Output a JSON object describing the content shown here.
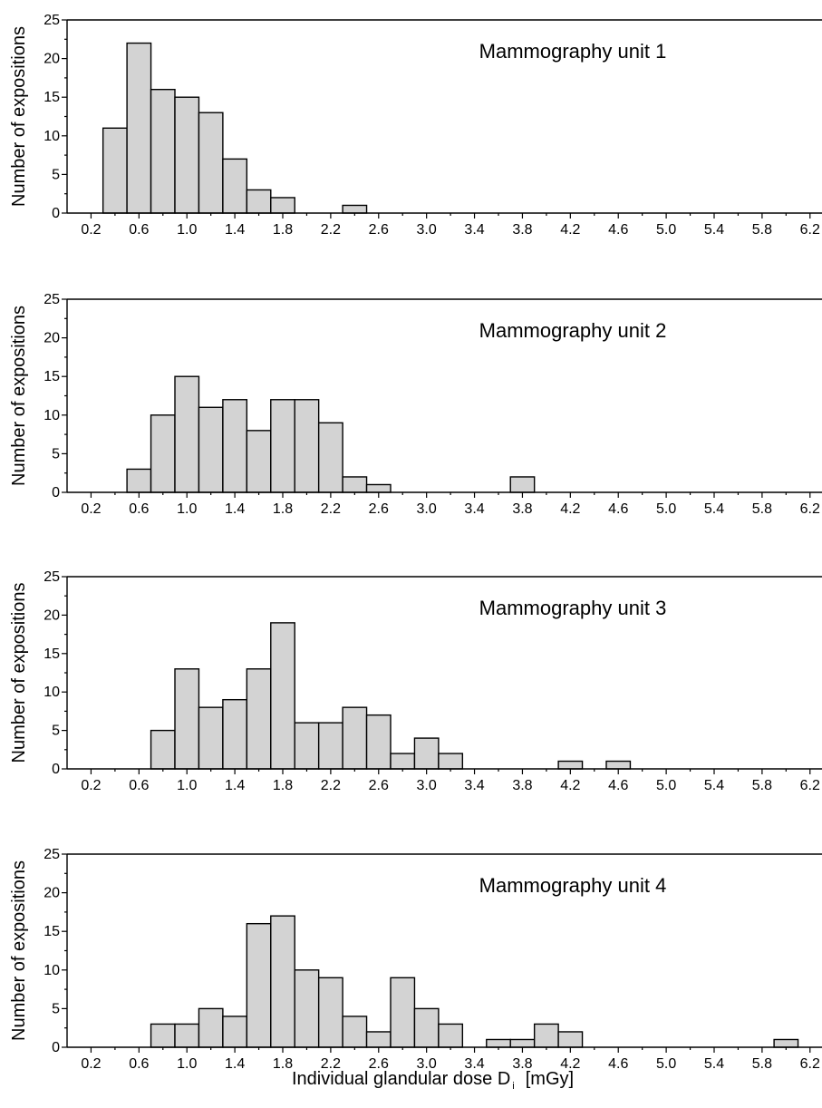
{
  "figure": {
    "xlabel_main": "Individual glandular dose D",
    "xlabel_sub": "i",
    "xlabel_unit": "[mGy]"
  },
  "chart_data": [
    {
      "type": "bar",
      "title": "Mammography unit 1",
      "ylabel": "Number of expositions",
      "xlabel": "Individual glandular dose D i [mGy]",
      "bin_width": 0.2,
      "xlim": [
        0.0,
        6.3
      ],
      "ylim": [
        0,
        25
      ],
      "xticks": [
        "0.2",
        "0.6",
        "1.0",
        "1.4",
        "1.8",
        "2.2",
        "2.6",
        "3.0",
        "3.4",
        "3.8",
        "4.2",
        "4.6",
        "5.0",
        "5.4",
        "5.8",
        "6.2"
      ],
      "yticks": [
        "0",
        "5",
        "10",
        "15",
        "20",
        "25"
      ],
      "bins": [
        {
          "x": 0.4,
          "count": 11
        },
        {
          "x": 0.6,
          "count": 22
        },
        {
          "x": 0.8,
          "count": 16
        },
        {
          "x": 1.0,
          "count": 15
        },
        {
          "x": 1.2,
          "count": 13
        },
        {
          "x": 1.4,
          "count": 7
        },
        {
          "x": 1.6,
          "count": 3
        },
        {
          "x": 1.8,
          "count": 2
        },
        {
          "x": 2.4,
          "count": 1
        }
      ]
    },
    {
      "type": "bar",
      "title": "Mammography unit 2",
      "ylabel": "Number of expositions",
      "xlabel": "Individual glandular dose D i [mGy]",
      "bin_width": 0.2,
      "xlim": [
        0.0,
        6.3
      ],
      "ylim": [
        0,
        25
      ],
      "xticks": [
        "0.2",
        "0.6",
        "1.0",
        "1.4",
        "1.8",
        "2.2",
        "2.6",
        "3.0",
        "3.4",
        "3.8",
        "4.2",
        "4.6",
        "5.0",
        "5.4",
        "5.8",
        "6.2"
      ],
      "yticks": [
        "0",
        "5",
        "10",
        "15",
        "20",
        "25"
      ],
      "bins": [
        {
          "x": 0.6,
          "count": 3
        },
        {
          "x": 0.8,
          "count": 10
        },
        {
          "x": 1.0,
          "count": 15
        },
        {
          "x": 1.2,
          "count": 11
        },
        {
          "x": 1.4,
          "count": 12
        },
        {
          "x": 1.6,
          "count": 8
        },
        {
          "x": 1.8,
          "count": 12
        },
        {
          "x": 2.0,
          "count": 12
        },
        {
          "x": 2.2,
          "count": 9
        },
        {
          "x": 2.4,
          "count": 2
        },
        {
          "x": 2.6,
          "count": 1
        },
        {
          "x": 3.8,
          "count": 2
        }
      ]
    },
    {
      "type": "bar",
      "title": "Mammography unit 3",
      "ylabel": "Number of expositions",
      "xlabel": "Individual glandular dose D i [mGy]",
      "bin_width": 0.2,
      "xlim": [
        0.0,
        6.3
      ],
      "ylim": [
        0,
        25
      ],
      "xticks": [
        "0.2",
        "0.6",
        "1.0",
        "1.4",
        "1.8",
        "2.2",
        "2.6",
        "3.0",
        "3.4",
        "3.8",
        "4.2",
        "4.6",
        "5.0",
        "5.4",
        "5.8",
        "6.2"
      ],
      "yticks": [
        "0",
        "5",
        "10",
        "15",
        "20",
        "25"
      ],
      "bins": [
        {
          "x": 0.8,
          "count": 5
        },
        {
          "x": 1.0,
          "count": 13
        },
        {
          "x": 1.2,
          "count": 8
        },
        {
          "x": 1.4,
          "count": 9
        },
        {
          "x": 1.6,
          "count": 13
        },
        {
          "x": 1.8,
          "count": 19
        },
        {
          "x": 2.0,
          "count": 6
        },
        {
          "x": 2.2,
          "count": 6
        },
        {
          "x": 2.4,
          "count": 8
        },
        {
          "x": 2.6,
          "count": 7
        },
        {
          "x": 2.8,
          "count": 2
        },
        {
          "x": 3.0,
          "count": 4
        },
        {
          "x": 3.2,
          "count": 2
        },
        {
          "x": 4.2,
          "count": 1
        },
        {
          "x": 4.6,
          "count": 1
        }
      ]
    },
    {
      "type": "bar",
      "title": "Mammography unit 4",
      "ylabel": "Number of expositions",
      "xlabel": "Individual glandular dose D i [mGy]",
      "bin_width": 0.2,
      "xlim": [
        0.0,
        6.3
      ],
      "ylim": [
        0,
        25
      ],
      "xticks": [
        "0.2",
        "0.6",
        "1.0",
        "1.4",
        "1.8",
        "2.2",
        "2.6",
        "3.0",
        "3.4",
        "3.8",
        "4.2",
        "4.6",
        "5.0",
        "5.4",
        "5.8",
        "6.2"
      ],
      "yticks": [
        "0",
        "5",
        "10",
        "15",
        "20",
        "25"
      ],
      "bins": [
        {
          "x": 0.8,
          "count": 3
        },
        {
          "x": 1.0,
          "count": 3
        },
        {
          "x": 1.2,
          "count": 5
        },
        {
          "x": 1.4,
          "count": 4
        },
        {
          "x": 1.6,
          "count": 16
        },
        {
          "x": 1.8,
          "count": 17
        },
        {
          "x": 2.0,
          "count": 10
        },
        {
          "x": 2.2,
          "count": 9
        },
        {
          "x": 2.4,
          "count": 4
        },
        {
          "x": 2.6,
          "count": 2
        },
        {
          "x": 2.8,
          "count": 9
        },
        {
          "x": 3.0,
          "count": 5
        },
        {
          "x": 3.2,
          "count": 3
        },
        {
          "x": 3.6,
          "count": 1
        },
        {
          "x": 3.8,
          "count": 1
        },
        {
          "x": 4.0,
          "count": 3
        },
        {
          "x": 4.2,
          "count": 2
        },
        {
          "x": 6.0,
          "count": 1
        }
      ]
    }
  ]
}
